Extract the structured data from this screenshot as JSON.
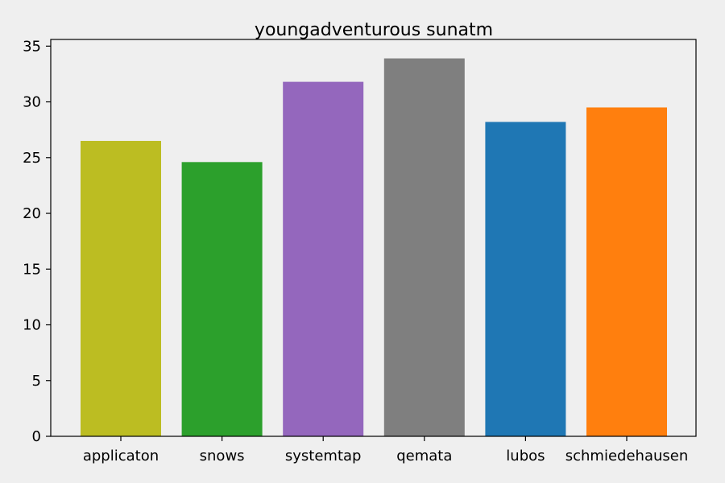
{
  "chart_data": {
    "type": "bar",
    "title": "youngadventurous sunatm",
    "xlabel": "",
    "ylabel": "",
    "categories": [
      "applicaton",
      "snows",
      "systemtap",
      "qemata",
      "lubos",
      "schmiedehausen"
    ],
    "values": [
      26.5,
      24.6,
      31.8,
      33.9,
      28.2,
      29.5
    ],
    "colors": [
      "#bcbd22",
      "#2ca02c",
      "#9467bd",
      "#7f7f7f",
      "#1f77b4",
      "#ff7f0e"
    ],
    "ylim": [
      0,
      35.6
    ],
    "yticks": [
      0,
      5,
      10,
      15,
      20,
      25,
      30,
      35
    ],
    "grid": false,
    "legend": "none"
  }
}
